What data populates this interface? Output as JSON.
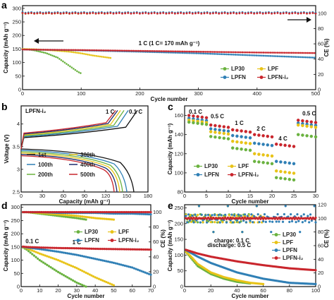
{
  "figure": {
    "panel_letters": [
      "a",
      "b",
      "c",
      "d",
      "e"
    ]
  },
  "colors": {
    "LP30": "#6ab23f",
    "LPF": "#e8c317",
    "LPFN": "#2f7fb5",
    "LPFN-i2": "#c9252c",
    "black": "#111111",
    "navy": "#1d2b6b",
    "orange": "#e07b27"
  },
  "chart_data": [
    {
      "id": "a",
      "type": "scatter",
      "xlabel": "Cycle number",
      "ylabel": "Capacity (mAh g⁻¹)",
      "y2label": "CE (%)",
      "xlim": [
        0,
        500
      ],
      "ylim": [
        0,
        310
      ],
      "y2lim": [
        0,
        110
      ],
      "xticks": [
        0,
        100,
        200,
        300,
        400,
        500
      ],
      "yticks": [
        0,
        50,
        100,
        150,
        200,
        250,
        300
      ],
      "y2ticks": [
        0,
        20,
        40,
        60,
        80,
        100
      ],
      "annotation": "1 C (1 C= 170 mAh g⁻¹)",
      "legend": [
        "LP30",
        "LPF",
        "LPFN",
        "LPFN-i₂"
      ],
      "legend_position": "bottom-right",
      "series": [
        {
          "name": "LP30",
          "x": [
            0,
            10,
            20,
            40,
            60,
            75,
            85,
            95,
            100
          ],
          "capacity": [
            150,
            148,
            145,
            135,
            118,
            95,
            80,
            65,
            60
          ],
          "ce_x": [
            0,
            100
          ],
          "ce": [
            100,
            100
          ]
        },
        {
          "name": "LPF",
          "x": [
            0,
            20,
            50,
            80,
            100,
            120,
            140,
            150
          ],
          "capacity": [
            150,
            149,
            145,
            140,
            134,
            126,
            120,
            117
          ],
          "ce_x": [
            0,
            150
          ],
          "ce": [
            100,
            100
          ]
        },
        {
          "name": "LPFN",
          "x": [
            0,
            100,
            200,
            300,
            400,
            500
          ],
          "capacity": [
            148,
            145,
            140,
            134,
            126,
            118
          ],
          "ce_x": [
            0,
            500
          ],
          "ce": [
            101,
            101
          ]
        },
        {
          "name": "LPFN-i₂",
          "x": [
            0,
            100,
            200,
            300,
            400,
            500
          ],
          "capacity": [
            148,
            146,
            143,
            140,
            137,
            135
          ],
          "ce_x": [
            0,
            500
          ],
          "ce": [
            100,
            100
          ]
        }
      ]
    },
    {
      "id": "b",
      "type": "line",
      "title": "LPFN-i₂",
      "xlabel": "Capacity (mAh g⁻¹)",
      "ylabel": "Voltage (V)",
      "xlim": [
        0,
        180
      ],
      "ylim": [
        2.5,
        4.4
      ],
      "xticks": [
        0,
        30,
        60,
        90,
        120,
        150,
        180
      ],
      "yticks": [
        2.5,
        3.0,
        3.5,
        4.0
      ],
      "labels": [
        "1 C",
        "0.1 C"
      ],
      "legend": [
        "1st",
        "100th",
        "200th",
        "300th",
        "400th",
        "500th"
      ],
      "legend_position": "bottom-left",
      "series": [
        {
          "name": "1st",
          "color": "#111111",
          "charge_end": 165,
          "discharge_end": 160
        },
        {
          "name": "100th",
          "color": "#2f7fb5",
          "charge_end": 152,
          "discharge_end": 150
        },
        {
          "name": "200th",
          "color": "#6ab23f",
          "charge_end": 146,
          "discharge_end": 144
        },
        {
          "name": "300th",
          "color": "#e8c317",
          "charge_end": 141,
          "discharge_end": 140
        },
        {
          "name": "400th",
          "color": "#1d2b6b",
          "charge_end": 137,
          "discharge_end": 136
        },
        {
          "name": "500th",
          "color": "#c9252c",
          "charge_end": 134,
          "discharge_end": 132
        }
      ]
    },
    {
      "id": "c",
      "type": "scatter",
      "xlabel": "Cycle number",
      "ylabel": "Capacity (mAh g⁻¹)",
      "xlim": [
        0,
        30
      ],
      "ylim": [
        80,
        170
      ],
      "xticks": [
        0,
        5,
        10,
        15,
        20,
        25,
        30
      ],
      "yticks": [
        80,
        100,
        120,
        140,
        160
      ],
      "rate_labels": [
        "0.1 C",
        "0.5 C",
        "1 C",
        "2 C",
        "4 C",
        "0.5 C"
      ],
      "legend": [
        "LP30",
        "LPF",
        "LPFN",
        "LPFN-i₂"
      ],
      "legend_position": "bottom-left",
      "series": [
        {
          "name": "LPFN-i₂",
          "levels": [
            160,
            150,
            145,
            140,
            130,
            155
          ]
        },
        {
          "name": "LPFN",
          "levels": [
            157,
            146,
            139,
            131,
            112,
            152
          ]
        },
        {
          "name": "LPF",
          "levels": [
            155,
            143,
            133,
            120,
            102,
            150
          ]
        },
        {
          "name": "LP30",
          "levels": [
            153,
            138,
            126,
            112,
            95,
            140
          ]
        }
      ]
    },
    {
      "id": "d",
      "type": "scatter",
      "xlabel": "Cycle number",
      "ylabel": "Capacity (mAh g⁻¹)",
      "y2label": "CE (%)",
      "xlim": [
        0,
        70
      ],
      "ylim": [
        0,
        310
      ],
      "y2lim": [
        0,
        110
      ],
      "xticks": [
        0,
        10,
        20,
        30,
        40,
        50,
        60,
        70
      ],
      "yticks": [
        0,
        50,
        100,
        150,
        200,
        250,
        300
      ],
      "y2ticks": [
        0,
        20,
        40,
        60,
        80,
        100
      ],
      "labels": [
        "0.1 C",
        "1 C"
      ],
      "legend": [
        "LP30",
        "LPF",
        "LPFN",
        "LPFN-i₂"
      ],
      "legend_position": "top-right",
      "series": [
        {
          "name": "LP30",
          "x": [
            0,
            3,
            10,
            20,
            30,
            35
          ],
          "capacity": [
            152,
            140,
            100,
            55,
            15,
            0
          ],
          "ce": [
            100,
            100,
            98,
            95,
            92,
            90
          ],
          "ce_end": 35
        },
        {
          "name": "LPF",
          "x": [
            0,
            3,
            10,
            20,
            30,
            40,
            50
          ],
          "capacity": [
            152,
            145,
            125,
            100,
            70,
            35,
            5
          ],
          "ce": [
            100,
            100,
            99,
            97,
            95,
            92,
            90
          ],
          "ce_end": 50
        },
        {
          "name": "LPFN",
          "x": [
            0,
            3,
            10,
            20,
            30,
            40,
            50,
            60,
            70
          ],
          "capacity": [
            152,
            148,
            142,
            132,
            120,
            105,
            90,
            72,
            45
          ],
          "ce": [
            100,
            100,
            100,
            99,
            99,
            99,
            98,
            98,
            97
          ],
          "ce_end": 70
        },
        {
          "name": "LPFN-i₂",
          "x": [
            0,
            3,
            10,
            20,
            30,
            40,
            50,
            60,
            70
          ],
          "capacity": [
            152,
            150,
            148,
            146,
            145,
            143,
            142,
            141,
            140
          ],
          "ce": [
            100,
            100,
            100,
            100,
            100,
            100,
            100,
            100,
            100
          ],
          "ce_end": 70
        }
      ]
    },
    {
      "id": "e",
      "type": "scatter",
      "xlabel": "Cycle number",
      "ylabel": "Capacity (mAh g⁻¹)",
      "y2label": "CE (%)",
      "xlim": [
        0,
        100
      ],
      "ylim": [
        0,
        260
      ],
      "y2lim": [
        0,
        120
      ],
      "xticks": [
        0,
        20,
        40,
        60,
        80,
        100
      ],
      "yticks": [
        0,
        50,
        100,
        150,
        200,
        250
      ],
      "y2ticks": [
        0,
        20,
        40,
        60,
        80,
        100,
        120
      ],
      "annotations": [
        "charge: 0.1 C",
        "discharge: 0.5 C"
      ],
      "legend": [
        "LP30",
        "LPF",
        "LPFN",
        "LPFN-i₂"
      ],
      "legend_position": "right",
      "series": [
        {
          "name": "LP30",
          "x": [
            0,
            5,
            10,
            20,
            30,
            40,
            50
          ],
          "capacity": [
            115,
            90,
            65,
            40,
            25,
            15,
            10
          ],
          "ce_end": 50
        },
        {
          "name": "LPF",
          "x": [
            0,
            5,
            10,
            20,
            30,
            40,
            50,
            60
          ],
          "capacity": [
            115,
            95,
            72,
            45,
            30,
            20,
            12,
            8
          ],
          "ce_end": 60
        },
        {
          "name": "LPFN",
          "x": [
            0,
            10,
            20,
            40,
            60,
            80,
            100
          ],
          "capacity": [
            118,
            95,
            75,
            45,
            25,
            12,
            8
          ],
          "ce_end": 100
        },
        {
          "name": "LPFN-i₂",
          "x": [
            0,
            10,
            20,
            40,
            60,
            80,
            100
          ],
          "capacity": [
            118,
            105,
            95,
            80,
            68,
            58,
            52
          ],
          "ce_end": 100
        }
      ]
    }
  ]
}
